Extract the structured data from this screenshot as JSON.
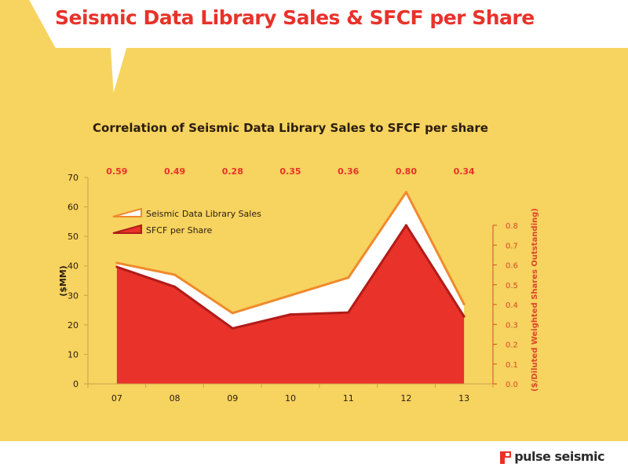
{
  "slide": {
    "title": "Seismic Data Library Sales & SFCF per Share",
    "background_color": "#f7d35f",
    "accent_color": "#e8322a",
    "logo_text": "pulse seismic",
    "logo_icon": "pulse-seismic-logo-icon"
  },
  "chart_data": {
    "type": "area",
    "title": "Correlation of Seismic Data Library Sales to SFCF per share",
    "categories": [
      "07",
      "08",
      "09",
      "10",
      "11",
      "12",
      "13"
    ],
    "ylabel": "($MM)",
    "y2label": "($/Diluted Weighted Shares Outstanding)",
    "ylim": [
      0,
      70
    ],
    "y2lim": [
      0,
      0.8
    ],
    "y_ticks": [
      "0",
      "10",
      "20",
      "30",
      "40",
      "50",
      "60",
      "70"
    ],
    "y2_ticks": [
      "0.0",
      "0.1",
      "0.2",
      "0.3",
      "0.4",
      "0.5",
      "0.6",
      "0.7",
      "0.8"
    ],
    "data_labels": [
      "0.59",
      "0.49",
      "0.28",
      "0.35",
      "0.36",
      "0.80",
      "0.34"
    ],
    "grid": false,
    "legend_position": "top-left",
    "series": [
      {
        "name": "Seismic Data Library Sales",
        "values": [
          41,
          37,
          24,
          30,
          36,
          65,
          27
        ],
        "color": "#ffffff",
        "axis": "left"
      },
      {
        "name": "SFCF per Share",
        "values": [
          0.59,
          0.49,
          0.28,
          0.35,
          0.36,
          0.8,
          0.34
        ],
        "color": "#e8322a",
        "axis": "right"
      }
    ]
  }
}
